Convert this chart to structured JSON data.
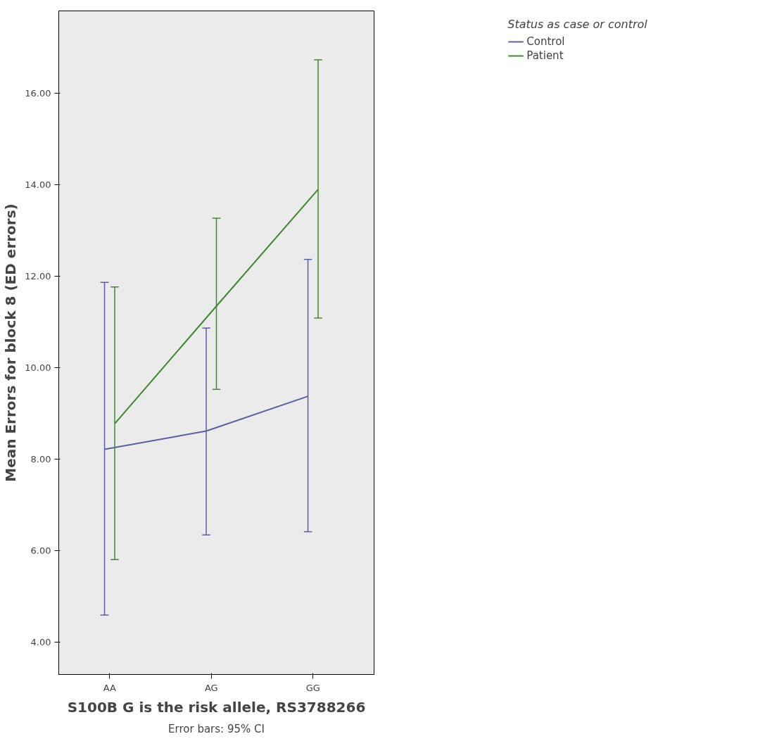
{
  "chart_data": {
    "type": "line",
    "xlabel": "S100B G is the risk allele, RS3788266",
    "ylabel": "Mean Errors for block 8 (ED errors)",
    "legend_title": "Status as case or control",
    "categories": [
      "AA",
      "AG",
      "GG"
    ],
    "series": [
      {
        "name": "Control",
        "color": "#5b5ea6",
        "values": [
          8.22,
          8.62,
          9.38
        ],
        "errors": [
          [
            4.6,
            11.87
          ],
          [
            6.35,
            10.87
          ],
          [
            6.42,
            12.37
          ]
        ]
      },
      {
        "name": "Patient",
        "color": "#3d8a2c",
        "values": [
          8.78,
          11.35,
          13.9
        ],
        "errors": [
          [
            5.81,
            11.77
          ],
          [
            9.53,
            13.27
          ],
          [
            11.09,
            16.73
          ]
        ]
      }
    ],
    "ylim": [
      3.3,
      17.8
    ],
    "yticks": [
      {
        "value": 4,
        "label": "4.00"
      },
      {
        "value": 6,
        "label": "6.00"
      },
      {
        "value": 8,
        "label": "8.00"
      },
      {
        "value": 10,
        "label": "10.00"
      },
      {
        "value": 12,
        "label": "12.00"
      },
      {
        "value": 14,
        "label": "14.00"
      },
      {
        "value": 16,
        "label": "16.00"
      }
    ],
    "grid": false,
    "legend": "top right",
    "marker": "none",
    "line_style": "solid",
    "annotations": [
      "Error bars: 95% CI"
    ]
  }
}
